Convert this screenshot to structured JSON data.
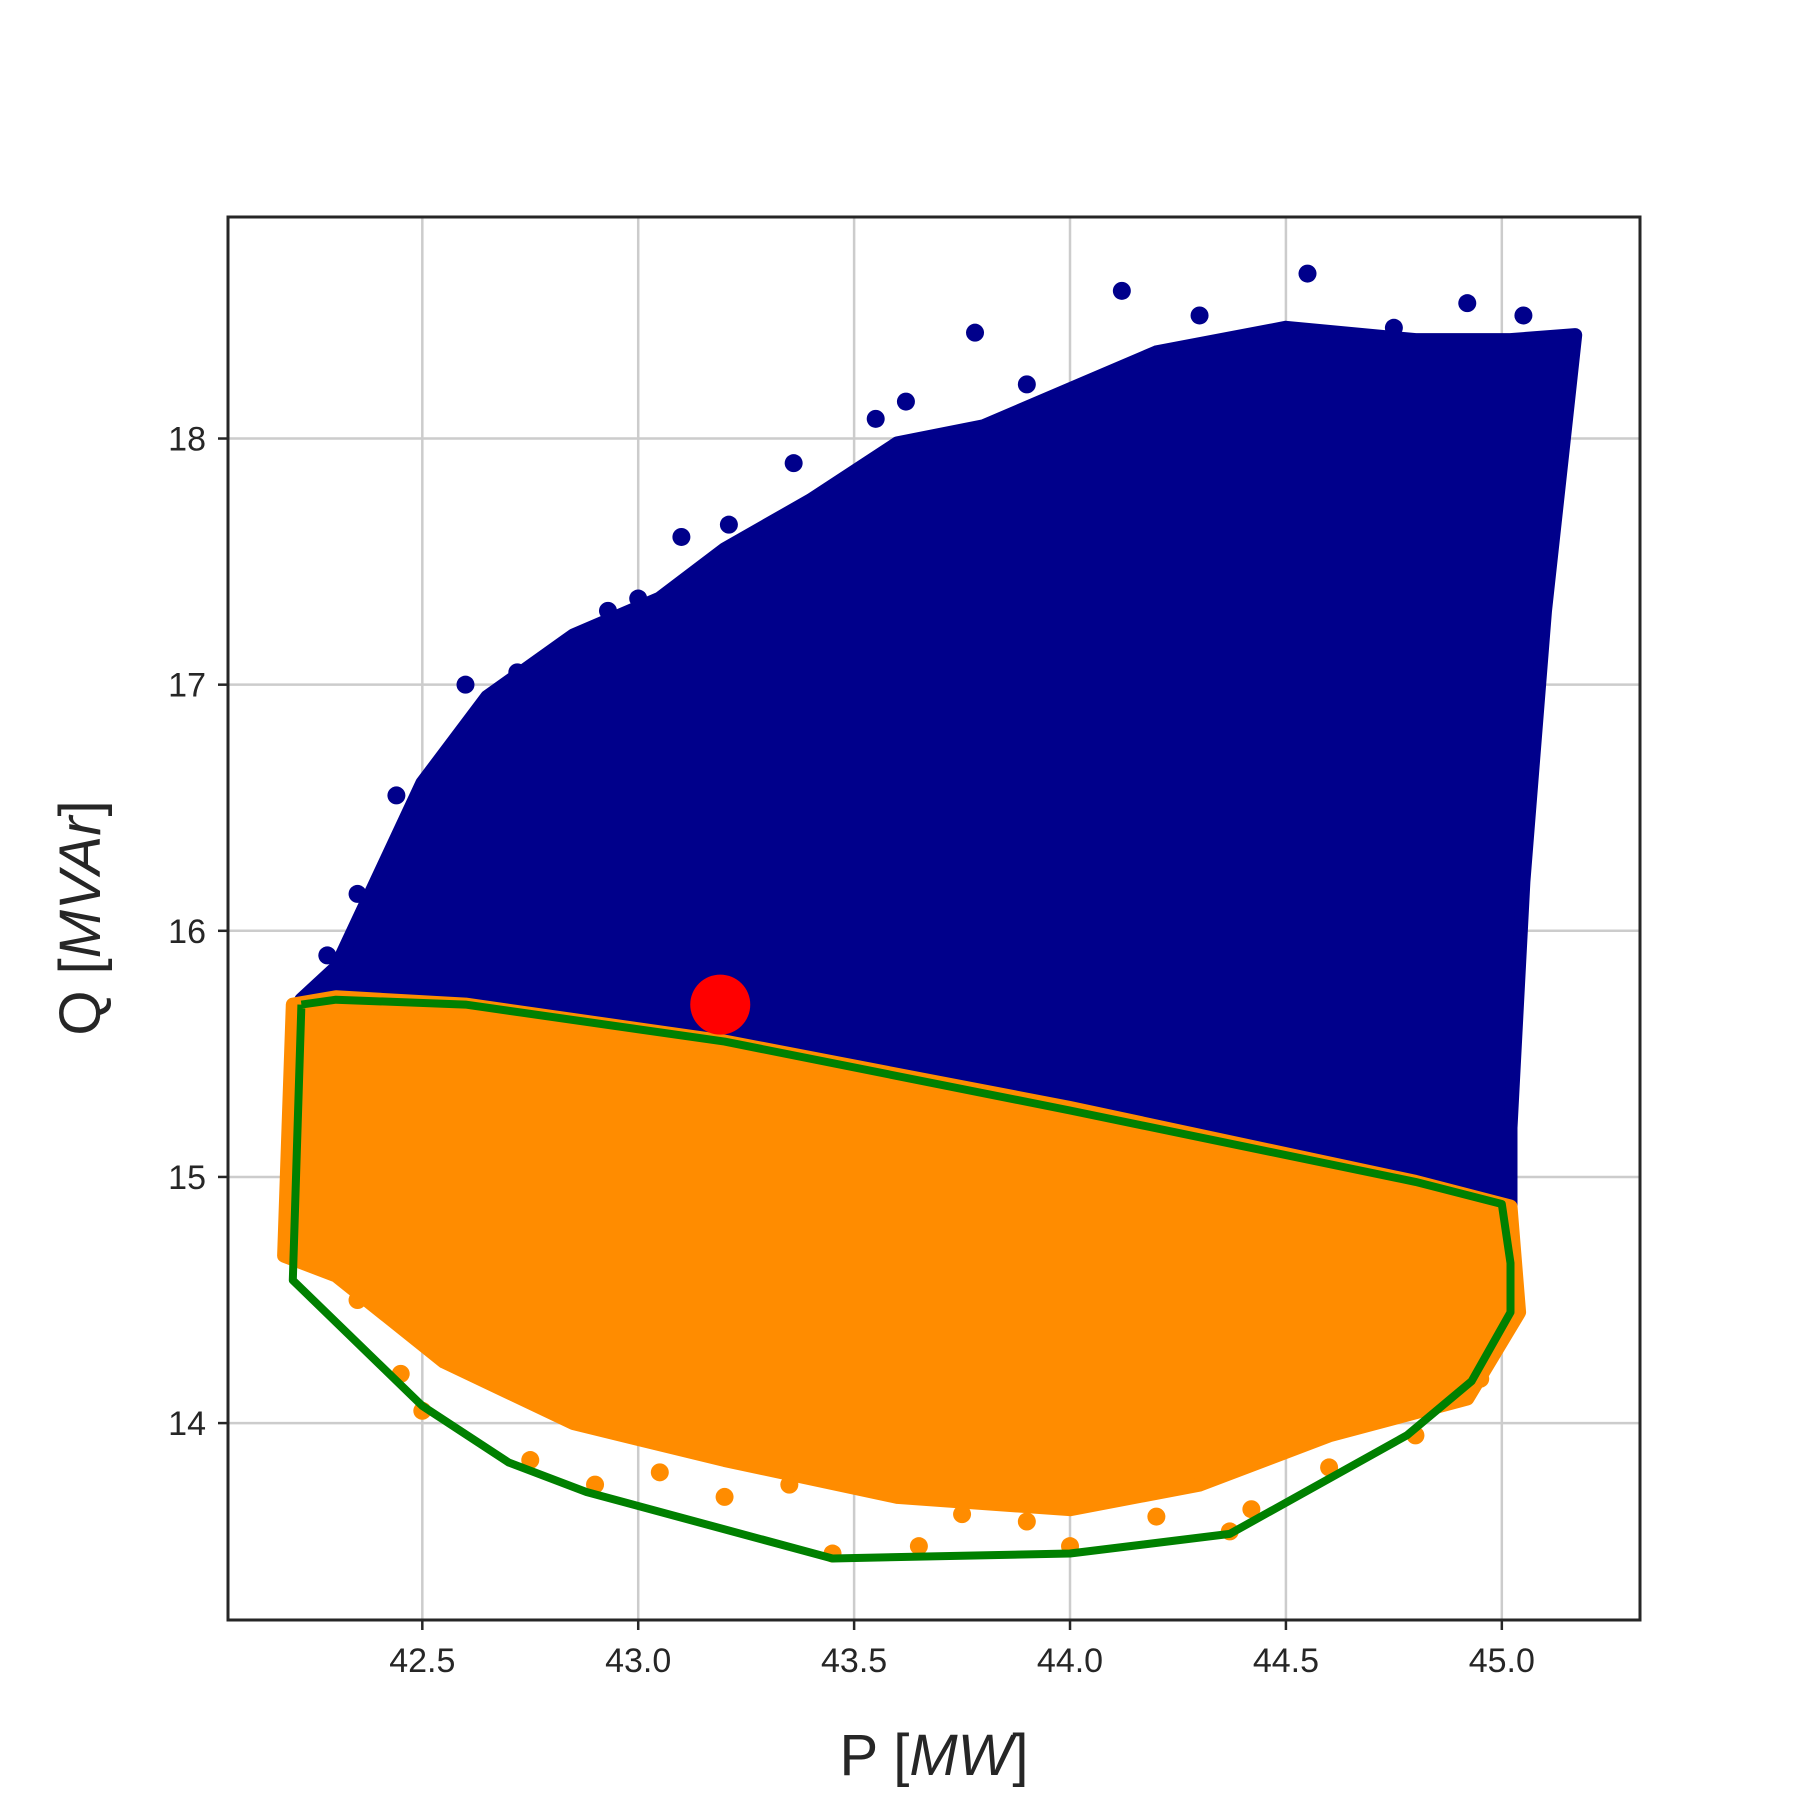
{
  "chart_data": {
    "type": "scatter",
    "title": "",
    "xlabel_prefix": "P [",
    "xlabel_unit": "MW",
    "xlabel_suffix": "]",
    "ylabel_prefix": "Q [",
    "ylabel_unit": "MVAr",
    "ylabel_suffix": "]",
    "xlim": [
      42.05,
      45.32
    ],
    "ylim": [
      13.2,
      18.9
    ],
    "x_ticks": [
      42.5,
      43.0,
      43.5,
      44.0,
      44.5,
      45.0
    ],
    "x_tick_labels": [
      "42.5",
      "43.0",
      "43.5",
      "44.0",
      "44.5",
      "45.0"
    ],
    "y_ticks": [
      14,
      15,
      16,
      17,
      18
    ],
    "y_tick_labels": [
      "14",
      "15",
      "16",
      "17",
      "18"
    ],
    "grid": true,
    "colors": {
      "blue_region": "#00008b",
      "orange_region": "#ff8c00",
      "hull": "#008000",
      "marker": "#ff0000"
    },
    "blue_region": {
      "outline": [
        [
          42.22,
          15.72
        ],
        [
          42.3,
          15.85
        ],
        [
          42.42,
          16.3
        ],
        [
          42.5,
          16.6
        ],
        [
          42.65,
          16.95
        ],
        [
          42.85,
          17.2
        ],
        [
          43.05,
          17.35
        ],
        [
          43.2,
          17.55
        ],
        [
          43.4,
          17.75
        ],
        [
          43.6,
          17.98
        ],
        [
          43.8,
          18.05
        ],
        [
          44.0,
          18.2
        ],
        [
          44.2,
          18.35
        ],
        [
          44.5,
          18.45
        ],
        [
          44.8,
          18.4
        ],
        [
          45.02,
          18.4
        ],
        [
          45.17,
          18.42
        ],
        [
          45.15,
          18.1
        ],
        [
          45.1,
          17.3
        ],
        [
          45.05,
          16.2
        ],
        [
          45.02,
          15.2
        ],
        [
          45.02,
          14.88
        ],
        [
          44.8,
          14.98
        ],
        [
          44.0,
          15.28
        ],
        [
          43.2,
          15.55
        ],
        [
          42.6,
          15.7
        ],
        [
          42.3,
          15.73
        ]
      ],
      "outliers": [
        [
          42.44,
          16.55
        ],
        [
          42.6,
          17.0
        ],
        [
          42.72,
          17.05
        ],
        [
          42.93,
          17.3
        ],
        [
          43.1,
          17.6
        ],
        [
          43.21,
          17.65
        ],
        [
          43.36,
          17.9
        ],
        [
          43.62,
          18.15
        ],
        [
          43.78,
          18.43
        ],
        [
          44.12,
          18.6
        ],
        [
          44.55,
          18.67
        ],
        [
          44.92,
          18.55
        ],
        [
          45.05,
          18.5
        ],
        [
          43.9,
          18.22
        ],
        [
          43.55,
          18.08
        ],
        [
          44.3,
          18.5
        ],
        [
          44.75,
          18.45
        ],
        [
          42.35,
          16.15
        ],
        [
          42.28,
          15.9
        ],
        [
          43.0,
          17.35
        ]
      ]
    },
    "orange_region": {
      "outline": [
        [
          42.2,
          15.7
        ],
        [
          42.3,
          15.73
        ],
        [
          42.6,
          15.7
        ],
        [
          43.2,
          15.55
        ],
        [
          44.0,
          15.28
        ],
        [
          44.8,
          14.98
        ],
        [
          45.02,
          14.88
        ],
        [
          45.04,
          14.45
        ],
        [
          44.92,
          14.1
        ],
        [
          44.6,
          13.95
        ],
        [
          44.3,
          13.75
        ],
        [
          44.0,
          13.65
        ],
        [
          43.6,
          13.7
        ],
        [
          43.2,
          13.85
        ],
        [
          42.85,
          14.0
        ],
        [
          42.55,
          14.25
        ],
        [
          42.3,
          14.6
        ],
        [
          42.18,
          14.68
        ],
        [
          42.19,
          15.2
        ]
      ],
      "outliers": [
        [
          43.45,
          13.47
        ],
        [
          43.65,
          13.5
        ],
        [
          44.0,
          13.5
        ],
        [
          44.37,
          13.56
        ],
        [
          44.42,
          13.65
        ],
        [
          43.2,
          13.7
        ],
        [
          42.9,
          13.75
        ],
        [
          42.75,
          13.85
        ],
        [
          43.9,
          13.6
        ],
        [
          44.6,
          13.82
        ],
        [
          44.8,
          13.95
        ],
        [
          44.95,
          14.18
        ],
        [
          42.45,
          14.2
        ],
        [
          42.5,
          14.05
        ],
        [
          42.35,
          14.5
        ],
        [
          42.25,
          14.65
        ],
        [
          43.35,
          13.75
        ],
        [
          44.2,
          13.62
        ],
        [
          43.05,
          13.8
        ],
        [
          43.75,
          13.63
        ]
      ]
    },
    "hull": [
      [
        42.22,
        15.7
      ],
      [
        42.3,
        15.72
      ],
      [
        42.6,
        15.7
      ],
      [
        43.2,
        15.55
      ],
      [
        44.0,
        15.27
      ],
      [
        44.8,
        14.98
      ],
      [
        45.0,
        14.89
      ],
      [
        45.02,
        14.65
      ],
      [
        45.02,
        14.45
      ],
      [
        44.93,
        14.17
      ],
      [
        44.78,
        13.95
      ],
      [
        44.37,
        13.55
      ],
      [
        44.0,
        13.47
      ],
      [
        43.45,
        13.45
      ],
      [
        42.88,
        13.72
      ],
      [
        42.7,
        13.84
      ],
      [
        42.5,
        14.07
      ],
      [
        42.2,
        14.58
      ],
      [
        42.22,
        15.7
      ]
    ],
    "marker": {
      "x": 43.19,
      "y": 15.7
    }
  }
}
